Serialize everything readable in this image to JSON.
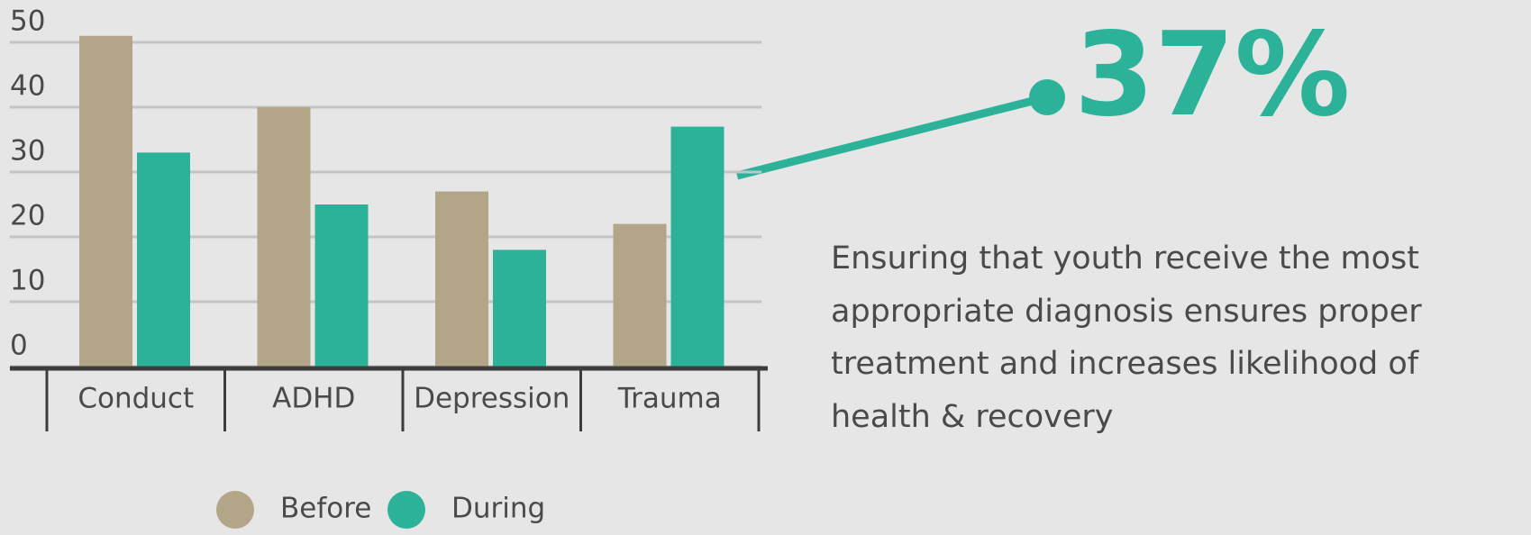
{
  "chart_data": {
    "type": "bar",
    "categories": [
      "Conduct",
      "ADHD",
      "Depression",
      "Trauma"
    ],
    "series": [
      {
        "name": "Before",
        "color": "#b3a588",
        "values": [
          51,
          40,
          27,
          22
        ]
      },
      {
        "name": "During",
        "color": "#2db29a",
        "values": [
          33,
          25,
          18,
          37
        ]
      }
    ],
    "ylim": [
      0,
      50
    ],
    "yticks": [
      0,
      10,
      20,
      30,
      40,
      50
    ],
    "grid": true,
    "legend": "bottom",
    "annotation": "37%",
    "description": "Ensuring that youth receive the most appropriate diagnosis ensures proper treatment and increases likelihood of health & recovery"
  }
}
